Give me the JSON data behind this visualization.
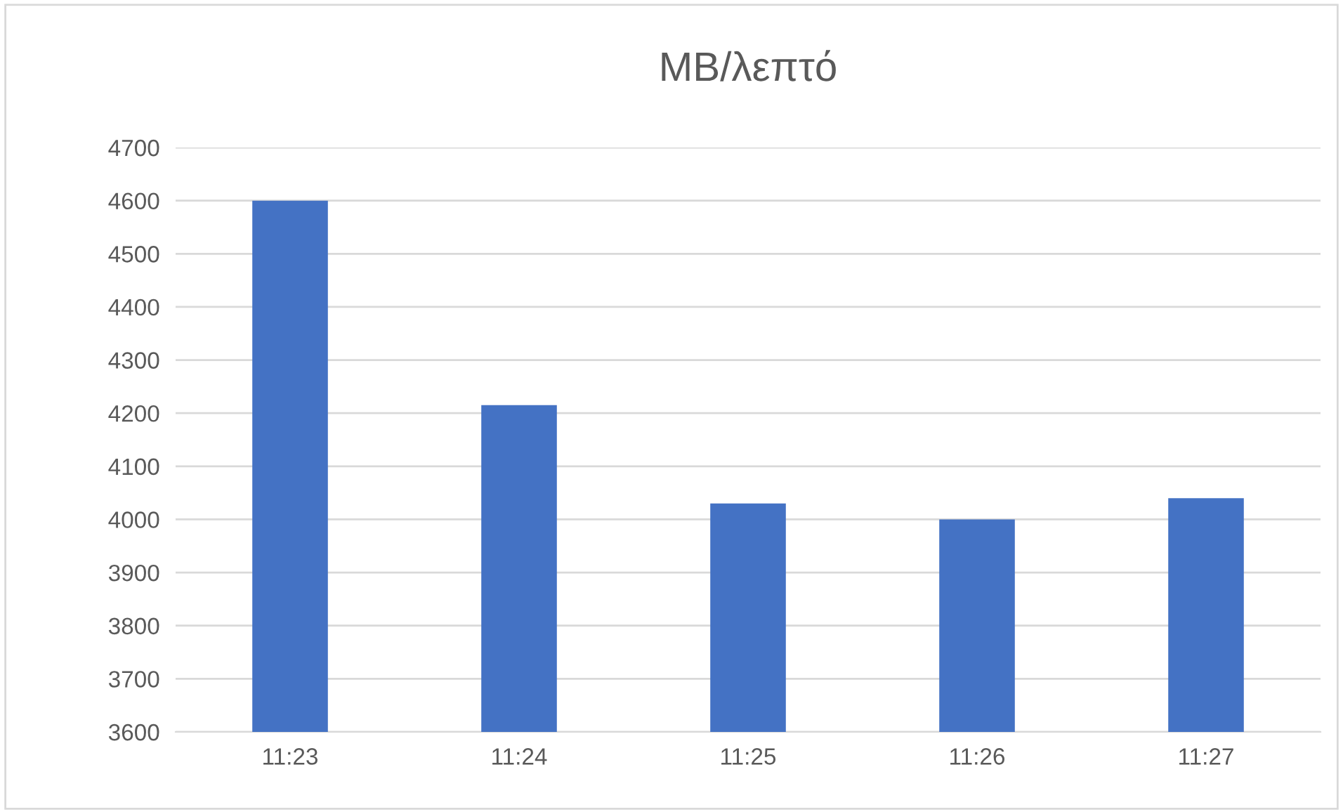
{
  "chart_data": {
    "type": "bar",
    "title": "MB/λεπτό",
    "categories": [
      "11:23",
      "11:24",
      "11:25",
      "11:26",
      "11:27"
    ],
    "values": [
      4600,
      4215,
      4030,
      4000,
      4040
    ],
    "color": "#4472c4",
    "ylim": [
      3600,
      4700
    ],
    "yticks": [
      3600,
      3700,
      3800,
      3900,
      4000,
      4100,
      4200,
      4300,
      4400,
      4500,
      4600,
      4700
    ],
    "grid": "y"
  }
}
